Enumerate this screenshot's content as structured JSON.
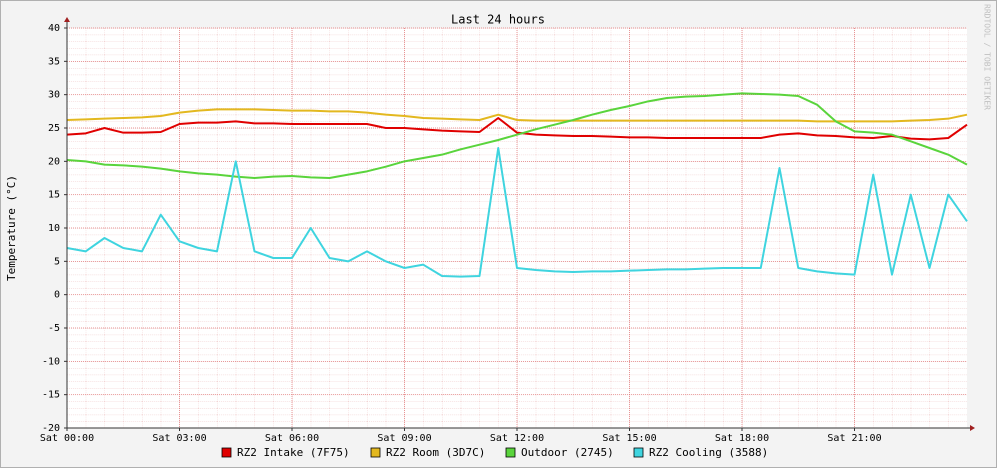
{
  "chart_data": {
    "type": "line",
    "title": "Last 24 hours",
    "y_label": "Temperature (°C)",
    "watermark": "RRDTOOL / TOBI OETIKER",
    "x": [
      0,
      0.5,
      1,
      1.5,
      2,
      2.5,
      3,
      3.5,
      4,
      4.5,
      5,
      5.5,
      6,
      6.5,
      7,
      7.5,
      8,
      8.5,
      9,
      9.5,
      10,
      10.5,
      11,
      11.5,
      12,
      12.5,
      13,
      13.5,
      14,
      14.5,
      15,
      15.5,
      16,
      16.5,
      17,
      17.5,
      18,
      18.5,
      19,
      19.5,
      20,
      20.5,
      21,
      21.5,
      22,
      22.5,
      23,
      23.5,
      24
    ],
    "xlim": [
      0,
      24
    ],
    "xticks": [
      {
        "value": 0,
        "label": "Sat 00:00"
      },
      {
        "value": 3,
        "label": "Sat 03:00"
      },
      {
        "value": 6,
        "label": "Sat 06:00"
      },
      {
        "value": 9,
        "label": "Sat 09:00"
      },
      {
        "value": 12,
        "label": "Sat 12:00"
      },
      {
        "value": 15,
        "label": "Sat 15:00"
      },
      {
        "value": 18,
        "label": "Sat 18:00"
      },
      {
        "value": 21,
        "label": "Sat 21:00"
      }
    ],
    "ylim": [
      -20,
      40
    ],
    "yticks": [
      -20,
      -15,
      -10,
      -5,
      0,
      5,
      10,
      15,
      20,
      25,
      30,
      35,
      40
    ],
    "grid": true,
    "series": [
      {
        "name": "RZ2 Intake (7F75)",
        "color": "#e00000",
        "values": [
          24.0,
          24.2,
          25.0,
          24.3,
          24.3,
          24.4,
          25.6,
          25.8,
          25.8,
          26.0,
          25.7,
          25.7,
          25.6,
          25.6,
          25.6,
          25.6,
          25.6,
          25.0,
          25.0,
          24.8,
          24.6,
          24.5,
          24.4,
          26.5,
          24.3,
          24.0,
          23.9,
          23.8,
          23.8,
          23.7,
          23.6,
          23.6,
          23.5,
          23.5,
          23.5,
          23.5,
          23.5,
          23.5,
          24.0,
          24.2,
          23.9,
          23.8,
          23.6,
          23.5,
          23.8,
          23.4,
          23.3,
          23.5,
          25.5
        ]
      },
      {
        "name": "RZ2 Room (3D7C)",
        "color": "#e3b81f",
        "values": [
          26.2,
          26.3,
          26.4,
          26.5,
          26.6,
          26.8,
          27.3,
          27.6,
          27.8,
          27.8,
          27.8,
          27.7,
          27.6,
          27.6,
          27.5,
          27.5,
          27.3,
          27.0,
          26.8,
          26.5,
          26.4,
          26.3,
          26.2,
          27.0,
          26.2,
          26.1,
          26.1,
          26.1,
          26.1,
          26.1,
          26.1,
          26.1,
          26.1,
          26.1,
          26.1,
          26.1,
          26.1,
          26.1,
          26.1,
          26.1,
          26.0,
          26.0,
          26.0,
          26.0,
          26.0,
          26.1,
          26.2,
          26.4,
          27.0
        ]
      },
      {
        "name": "Outdoor (2745)",
        "color": "#5ad43c",
        "values": [
          20.2,
          20.0,
          19.5,
          19.4,
          19.2,
          18.9,
          18.5,
          18.2,
          18.0,
          17.7,
          17.5,
          17.7,
          17.8,
          17.6,
          17.5,
          18.0,
          18.5,
          19.2,
          20.0,
          20.5,
          21.0,
          21.8,
          22.5,
          23.2,
          24.0,
          24.8,
          25.5,
          26.2,
          27.0,
          27.7,
          28.3,
          29.0,
          29.5,
          29.7,
          29.8,
          30.0,
          30.2,
          30.1,
          30.0,
          29.8,
          28.5,
          26.0,
          24.5,
          24.3,
          24.0,
          23.0,
          22.0,
          21.0,
          19.5
        ]
      },
      {
        "name": "RZ2 Cooling (3588)",
        "color": "#3fd4df",
        "values": [
          7,
          6.5,
          8.5,
          7,
          6.5,
          12,
          8,
          7,
          6.5,
          20,
          6.5,
          5.5,
          5.5,
          10,
          5.5,
          5,
          6.5,
          5,
          4,
          4.5,
          2.8,
          2.7,
          2.8,
          22,
          4,
          3.7,
          3.5,
          3.4,
          3.5,
          3.5,
          3.6,
          3.7,
          3.8,
          3.8,
          3.9,
          4,
          4,
          4,
          19,
          4,
          3.5,
          3.2,
          3,
          18,
          3,
          15,
          4,
          15,
          11
        ]
      }
    ]
  }
}
